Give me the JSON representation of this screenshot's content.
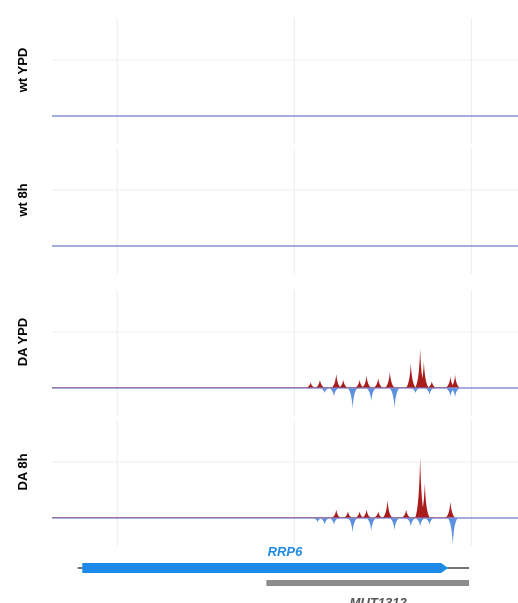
{
  "chart_data": {
    "type": "area",
    "title": "",
    "colors": {
      "forward": "#a81c1c",
      "reverse": "#5b8fe0",
      "baseline": "#8590d8",
      "grid": "#ececec",
      "gene_primary": "#1e8ae8",
      "gene_secondary": "#8c8c8c"
    },
    "grid": true,
    "x_range": [
      0,
      100
    ],
    "tracks": [
      {
        "label": "wt YPD",
        "forward": [],
        "reverse": []
      },
      {
        "label": "wt 8h",
        "forward": [],
        "reverse": []
      },
      {
        "label": "DA YPD",
        "forward": [
          {
            "x": 55.5,
            "h": 0.7
          },
          {
            "x": 57.5,
            "h": 1.0
          },
          {
            "x": 61,
            "h": 1.7
          },
          {
            "x": 62.5,
            "h": 1.0
          },
          {
            "x": 66,
            "h": 1.0
          },
          {
            "x": 67.5,
            "h": 1.5
          },
          {
            "x": 70,
            "h": 1.2
          },
          {
            "x": 72.5,
            "h": 2.0
          },
          {
            "x": 77,
            "h": 3.0
          },
          {
            "x": 79,
            "h": 4.8
          },
          {
            "x": 79.8,
            "h": 3.2
          },
          {
            "x": 81.5,
            "h": 0.8
          },
          {
            "x": 85.5,
            "h": 1.4
          },
          {
            "x": 86.5,
            "h": 1.6
          }
        ],
        "reverse": [
          {
            "x": 58.5,
            "h": 0.6
          },
          {
            "x": 60.5,
            "h": 1.0
          },
          {
            "x": 64.5,
            "h": 2.5
          },
          {
            "x": 68.5,
            "h": 1.6
          },
          {
            "x": 73.5,
            "h": 2.5
          },
          {
            "x": 78,
            "h": 0.6
          },
          {
            "x": 81,
            "h": 0.8
          },
          {
            "x": 85.5,
            "h": 1.0
          },
          {
            "x": 86.5,
            "h": 1.1
          }
        ]
      },
      {
        "label": "DA 8h",
        "forward": [
          {
            "x": 61,
            "h": 1.0
          },
          {
            "x": 63.5,
            "h": 0.8
          },
          {
            "x": 66,
            "h": 0.8
          },
          {
            "x": 67.5,
            "h": 1.0
          },
          {
            "x": 70,
            "h": 0.8
          },
          {
            "x": 72,
            "h": 2.2
          },
          {
            "x": 76,
            "h": 1.0
          },
          {
            "x": 79,
            "h": 7.5
          },
          {
            "x": 80,
            "h": 4.3
          },
          {
            "x": 85.5,
            "h": 2.0
          }
        ],
        "reverse": [
          {
            "x": 57,
            "h": 0.5
          },
          {
            "x": 58.5,
            "h": 0.8
          },
          {
            "x": 60.5,
            "h": 0.8
          },
          {
            "x": 64.5,
            "h": 1.8
          },
          {
            "x": 68.5,
            "h": 1.6
          },
          {
            "x": 73.5,
            "h": 1.5
          },
          {
            "x": 77,
            "h": 1.0
          },
          {
            "x": 79,
            "h": 1.0
          },
          {
            "x": 81,
            "h": 0.8
          },
          {
            "x": 86,
            "h": 3.3
          }
        ]
      }
    ],
    "genes": [
      {
        "name": "RRP6",
        "start": 6.5,
        "end": 85,
        "line_start": 5.5,
        "line_end": 89.5,
        "strand": "+",
        "color": "#1e8ae8"
      },
      {
        "name": "MUT1312",
        "start": 46,
        "end": 89.5,
        "strand": "-",
        "color": "#8c8c8c"
      }
    ]
  }
}
